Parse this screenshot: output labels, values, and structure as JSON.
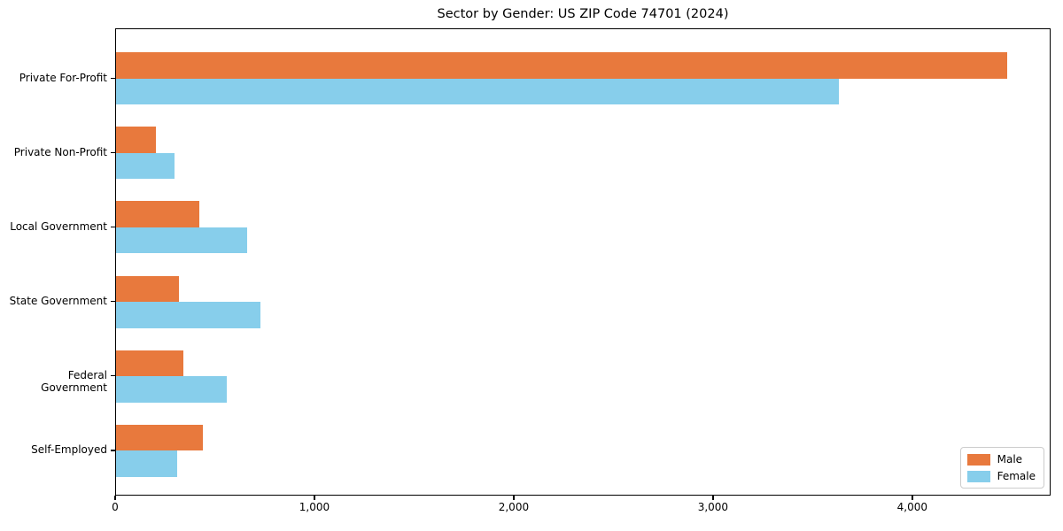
{
  "chart_data": {
    "type": "bar",
    "orientation": "horizontal",
    "title": "Sector by Gender: US ZIP Code 74701 (2024)",
    "categories": [
      "Private For-Profit",
      "Private Non-Profit",
      "Local Government",
      "State Government",
      "Federal Government",
      "Self-Employed"
    ],
    "series": [
      {
        "name": "Male",
        "color": "#e8793d",
        "values": [
          4470,
          198,
          416,
          317,
          339,
          436
        ]
      },
      {
        "name": "Female",
        "color": "#87ceeb",
        "values": [
          3627,
          293,
          659,
          726,
          557,
          307
        ]
      }
    ],
    "xlabel": "",
    "ylabel": "",
    "xlim": [
      0,
      4694
    ],
    "x_ticks": [
      0,
      1000,
      2000,
      3000,
      4000
    ],
    "x_tick_labels": [
      "0",
      "1,000",
      "2,000",
      "3,000",
      "4,000"
    ],
    "legend_position": "lower right",
    "grid": false
  }
}
